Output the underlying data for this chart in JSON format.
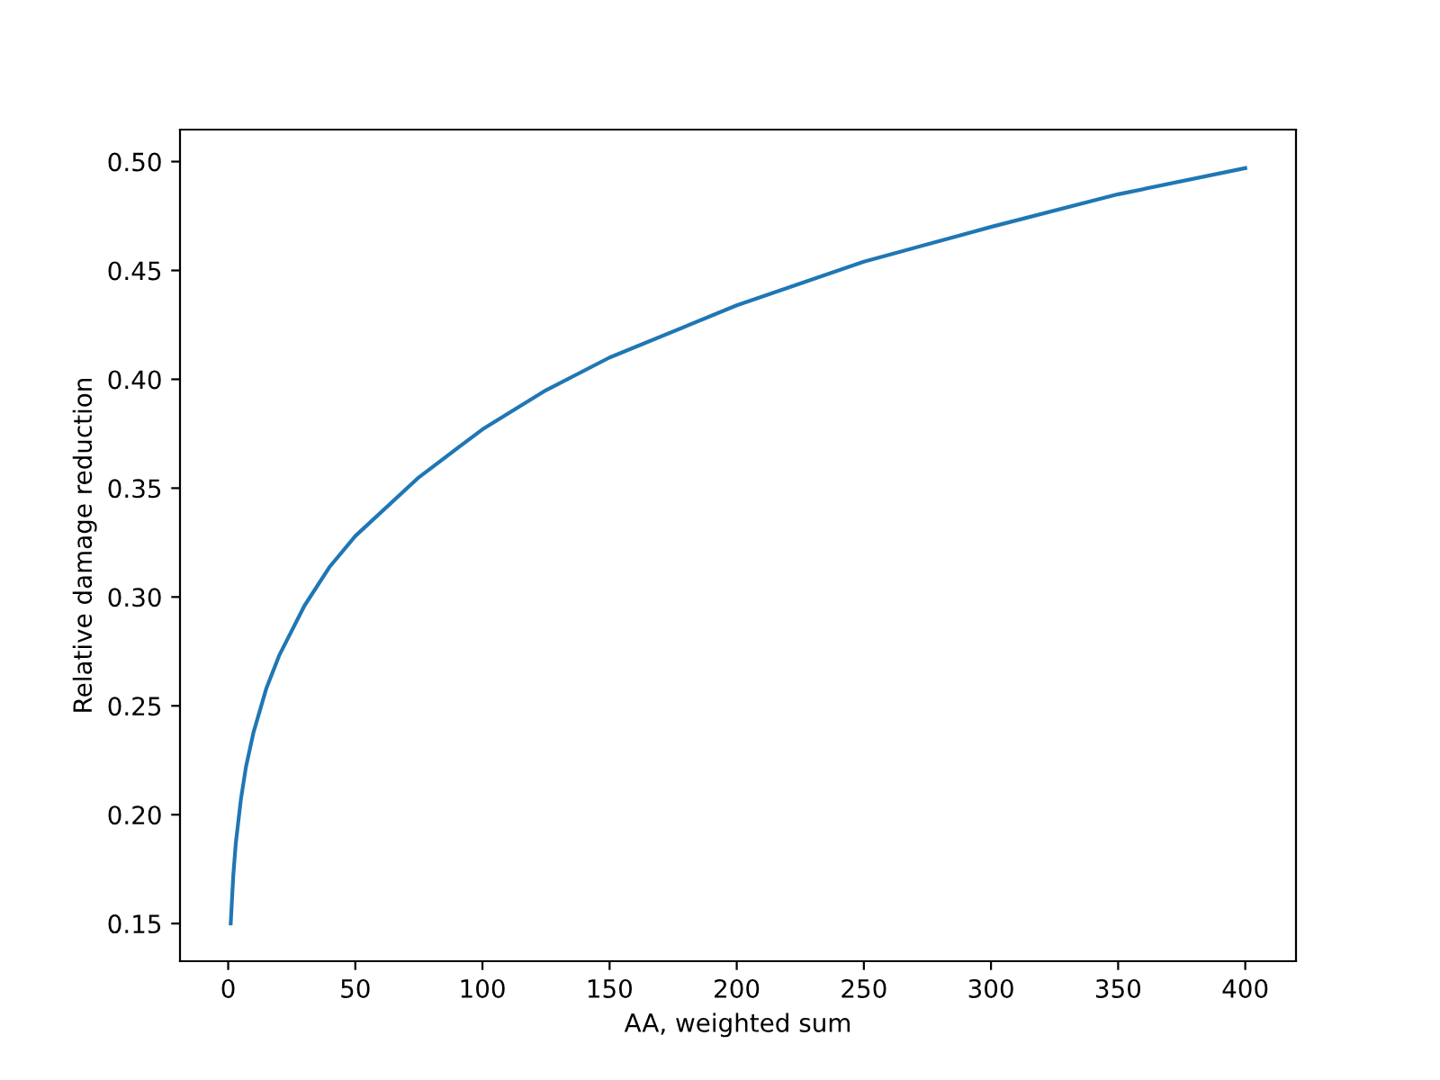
{
  "chart_data": {
    "type": "line",
    "xlabel": "AA, weighted sum",
    "ylabel": "Relative damage reduction",
    "x": [
      1,
      2,
      3,
      5,
      7,
      10,
      15,
      20,
      30,
      40,
      50,
      75,
      100,
      125,
      150,
      200,
      250,
      300,
      350,
      400
    ],
    "series": [
      {
        "color": "#1f77b4",
        "values": [
          0.15,
          0.172,
          0.187,
          0.207,
          0.222,
          0.238,
          0.258,
          0.273,
          0.296,
          0.314,
          0.328,
          0.355,
          0.377,
          0.395,
          0.41,
          0.434,
          0.454,
          0.47,
          0.485,
          0.497
        ]
      }
    ],
    "xlim": [
      -18.95,
      419.95
    ],
    "ylim": [
      0.1327,
      0.5147
    ],
    "xticks": [
      0,
      50,
      100,
      150,
      200,
      250,
      300,
      350,
      400
    ],
    "yticks": [
      {
        "value": 0.15,
        "label": "0.15"
      },
      {
        "value": 0.2,
        "label": "0.20"
      },
      {
        "value": 0.25,
        "label": "0.25"
      },
      {
        "value": 0.3,
        "label": "0.30"
      },
      {
        "value": 0.35,
        "label": "0.35"
      },
      {
        "value": 0.4,
        "label": "0.40"
      },
      {
        "value": 0.45,
        "label": "0.45"
      },
      {
        "value": 0.5,
        "label": "0.50"
      }
    ],
    "grid": false
  }
}
